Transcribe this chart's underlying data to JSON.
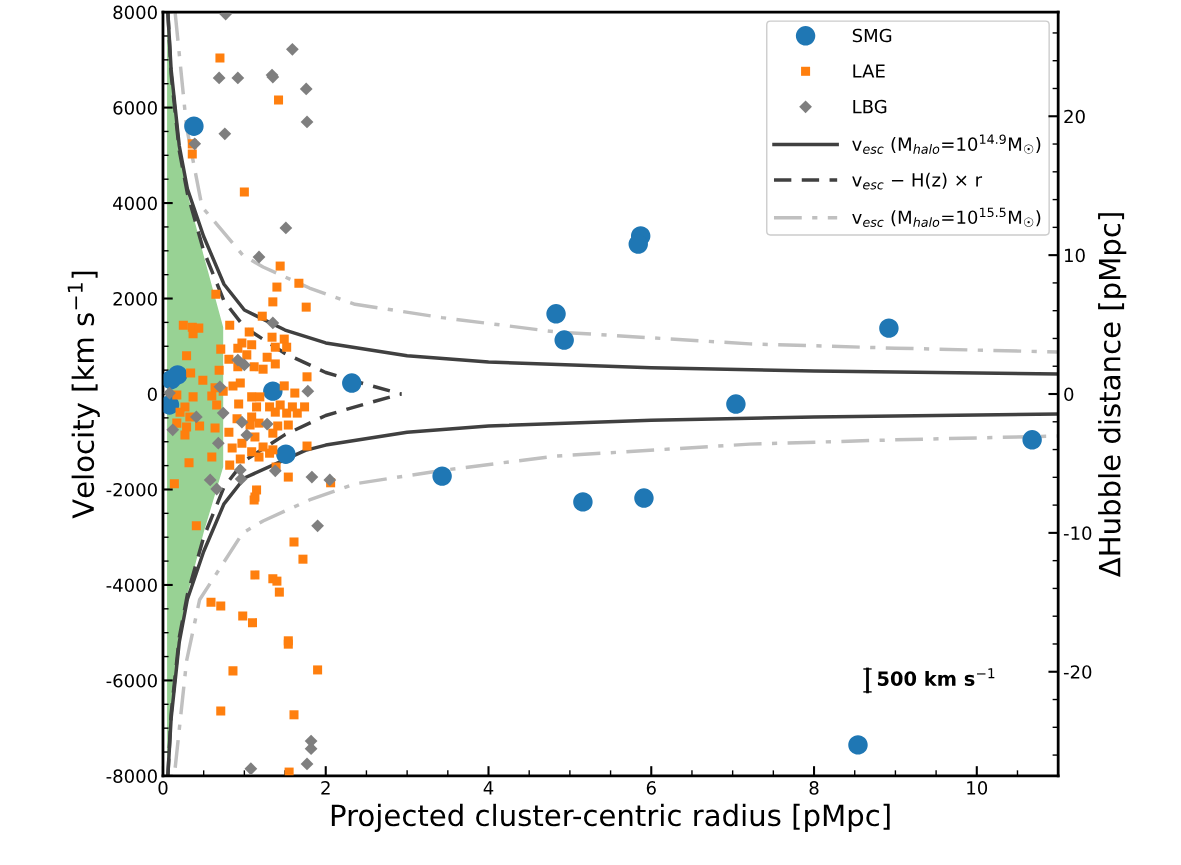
{
  "chart_data": {
    "type": "scatter",
    "xlabel": "Projected cluster-centric radius [pMpc]",
    "ylabel": "Velocity [km s$^{−1}$]",
    "y2label": "ΔHubble distance [pMpc]",
    "xlim": [
      0,
      11
    ],
    "xticks": [
      0,
      2,
      4,
      6,
      8,
      10
    ],
    "ylim": [
      -8000,
      8000
    ],
    "yticks": [
      -8000,
      -6000,
      -4000,
      -2000,
      0,
      2000,
      4000,
      6000,
      8000
    ],
    "y2lim": [
      -27.5,
      27.5
    ],
    "y2ticks": [
      -20,
      -10,
      0,
      10,
      20
    ],
    "grid": false,
    "legend": "top right",
    "annotations": [
      "500 km s$^{−1}$"
    ],
    "series": [
      {
        "type": "area",
        "color": "#98d294",
        "x": [
          0.05,
          0.1,
          0.2,
          0.3,
          0.5,
          0.74
        ],
        "values": [
          8000,
          6700,
          5100,
          4200,
          2900,
          1400
        ]
      },
      {
        "type": "area",
        "color": "#98d294",
        "x": [
          0.05,
          0.1,
          0.2,
          0.3,
          0.5,
          0.74
        ],
        "values": [
          -8000,
          -6700,
          -5100,
          -4200,
          -2900,
          -1530
        ]
      },
      {
        "type": "line",
        "name": "v$_{esc}$ (M$_{halo}$=10$^{14.9}$M$_{☉}$)",
        "color": "#404040",
        "line_style": "solid",
        "marker": "none",
        "x": [
          0.06,
          0.1,
          0.2,
          0.3,
          0.5,
          0.75,
          1,
          1.5,
          2,
          3,
          4,
          6,
          8,
          11
        ],
        "values": [
          8000,
          6800,
          5200,
          4300,
          3300,
          2300,
          1760,
          1340,
          1070,
          800,
          670,
          550,
          480,
          420
        ]
      },
      {
        "type": "line",
        "color": "#404040",
        "line_style": "solid",
        "marker": "none",
        "x": [
          0.06,
          0.1,
          0.2,
          0.3,
          0.5,
          0.75,
          1,
          1.75,
          2,
          3,
          4,
          6,
          8,
          11
        ],
        "values": [
          -8000,
          -6800,
          -5200,
          -4300,
          -3300,
          -2300,
          -1760,
          -1180,
          -1070,
          -800,
          -670,
          -550,
          -480,
          -420
        ]
      },
      {
        "type": "line",
        "name": "v$_{esc}$ − H(z) × r",
        "color": "#404040",
        "line_style": "dashed",
        "marker": "none",
        "x": [
          0.06,
          0.1,
          0.2,
          0.3,
          0.5,
          0.75,
          1,
          1.5,
          2,
          2.5,
          2.93
        ],
        "values": [
          8000,
          6700,
          5100,
          4200,
          3000,
          1950,
          1400,
          850,
          450,
          200,
          0
        ]
      },
      {
        "type": "line",
        "color": "#404040",
        "line_style": "dashed",
        "marker": "none",
        "x": [
          0.06,
          0.1,
          0.2,
          0.3,
          0.5,
          0.75,
          1,
          1.5,
          2,
          2.5,
          2.93
        ],
        "values": [
          -8000,
          -6700,
          -5100,
          -4200,
          -3000,
          -1950,
          -1400,
          -850,
          -450,
          -200,
          0
        ]
      },
      {
        "type": "line",
        "name": "v$_{esc}$ (M$_{halo}$=10$^{15.5}$M$_{☉}$)",
        "color": "#c0c0c0",
        "line_style": "dashdot",
        "marker": "none",
        "x": [
          0.15,
          0.29,
          0.48,
          0.98,
          1.23,
          1.8,
          2.36,
          3.43,
          4.83,
          7.21,
          9,
          11
        ],
        "values": [
          7980,
          5590,
          3920,
          2910,
          2660,
          2220,
          1880,
          1600,
          1300,
          1050,
          960,
          880
        ]
      },
      {
        "type": "line",
        "color": "#c0c0c0",
        "line_style": "dashdot",
        "marker": "none",
        "x": [
          0.15,
          0.29,
          0.45,
          0.98,
          1.23,
          1.8,
          2.36,
          3.43,
          4.83,
          7.21,
          9,
          11
        ],
        "values": [
          -7830,
          -5590,
          -4310,
          -2910,
          -2660,
          -2220,
          -1880,
          -1600,
          -1300,
          -1050,
          -960,
          -880
        ]
      },
      {
        "name": "SMG",
        "color": "#1f77b4",
        "marker": "circle",
        "x": [
          0.1,
          0.18,
          0.08,
          1.35,
          1.51,
          2.32,
          0.38,
          4.83,
          4.93,
          5.87,
          5.84,
          7.04,
          3.43,
          5.16,
          5.91,
          8.92,
          10.68,
          8.54
        ],
        "values": [
          300,
          400,
          -230,
          60,
          -1260,
          230,
          5610,
          1680,
          1130,
          3310,
          3140,
          -210,
          -1720,
          -2260,
          -2180,
          1380,
          -960,
          -7350
        ]
      },
      {
        "name": "LAE",
        "color": "#ff7f0e",
        "marker": "square",
        "x": [
          0.7,
          1.42,
          0.36,
          0.36,
          1.0,
          1.44,
          1.67,
          1.4,
          0.65,
          1.35,
          1.76,
          1.22,
          0.25,
          0.36,
          0.44,
          0.37,
          0.82,
          1.06,
          1.34,
          1.49,
          0.97,
          1.09,
          1.38,
          1.52,
          0.71,
          0.92,
          1.03,
          0.29,
          1.28,
          0.81,
          1.38,
          0.92,
          1.12,
          1.23,
          0.69,
          0.34,
          1.77,
          0.49,
          0.95,
          0.86,
          1.49,
          0.64,
          0.74,
          1.09,
          1.19,
          1.62,
          0.17,
          0.37,
          0.6,
          0.66,
          0.27,
          0.93,
          1.15,
          1.31,
          1.44,
          1.59,
          1.74,
          1.65,
          1.52,
          1.38,
          0.21,
          0.33,
          1.09,
          0.91,
          0.17,
          0.29,
          0.45,
          0.64,
          0.81,
          1.07,
          1.18,
          1.41,
          1.54,
          0.27,
          1.35,
          1.13,
          0.85,
          0.97,
          1.09,
          1.23,
          1.35,
          0.6,
          0.95,
          1.18,
          1.31,
          1.77,
          0.32,
          0.82,
          1.39,
          1.54,
          2.06,
          0.14,
          1.15,
          1.13,
          1.12,
          0.41,
          1.61,
          1.72,
          1.13,
          1.35,
          1.4,
          1.43,
          0.59,
          0.71,
          0.98,
          1.1,
          1.54,
          1.54,
          0.86,
          1.9,
          0.71,
          1.61,
          1.55
        ],
        "values": [
          7040,
          6160,
          5240,
          5030,
          4230,
          2680,
          2320,
          2240,
          2090,
          1930,
          1820,
          1630,
          1440,
          1400,
          1380,
          1260,
          1440,
          1300,
          1190,
          1150,
          1070,
          1030,
          980,
          980,
          940,
          960,
          820,
          800,
          770,
          730,
          630,
          570,
          570,
          520,
          500,
          440,
          360,
          290,
          230,
          170,
          170,
          130,
          60,
          -60,
          -60,
          20,
          -20,
          -60,
          -40,
          -230,
          -270,
          -210,
          -270,
          -270,
          -230,
          -270,
          -270,
          -400,
          -400,
          -380,
          -380,
          -480,
          -480,
          -520,
          -610,
          -690,
          -670,
          -710,
          -800,
          -650,
          -610,
          -670,
          -650,
          -860,
          -820,
          -900,
          -1130,
          -1030,
          -1210,
          -1110,
          -1170,
          -1320,
          -1360,
          -1320,
          -1240,
          -1090,
          -1440,
          -1490,
          -1530,
          -1740,
          -1860,
          -1880,
          -2010,
          -2160,
          -2220,
          -2760,
          -3100,
          -3460,
          -3790,
          -3870,
          -3920,
          -4150,
          -4360,
          -4440,
          -4650,
          -4790,
          -5170,
          -5240,
          -5800,
          -5780,
          -6640,
          -6720,
          -7920
        ]
      },
      {
        "name": "LBG",
        "color": "#7f7f7f",
        "marker": "diamond",
        "x": [
          0.77,
          1.59,
          0.69,
          0.92,
          1.34,
          1.35,
          1.76,
          1.77,
          0.76,
          0.39,
          1.51,
          1.18,
          1.35,
          0.92,
          1.0,
          0.7,
          1.78,
          0.08,
          0.41,
          0.74,
          0.12,
          1.28,
          0.97,
          1.03,
          0.68,
          0.95,
          0.58,
          0.66,
          0.96,
          1.83,
          2.05,
          1.38,
          1.9,
          1.82,
          1.82,
          1.77,
          1.08
        ],
        "values": [
          7960,
          7220,
          6620,
          6620,
          6680,
          6640,
          6390,
          5700,
          5450,
          5240,
          3480,
          2870,
          1490,
          710,
          610,
          150,
          60,
          20,
          -480,
          -400,
          -750,
          -630,
          -590,
          -860,
          -1030,
          -1590,
          -1800,
          -1990,
          -1780,
          -1740,
          -1800,
          -1610,
          -2760,
          -7270,
          -7430,
          -7750,
          -7850
        ]
      }
    ]
  }
}
